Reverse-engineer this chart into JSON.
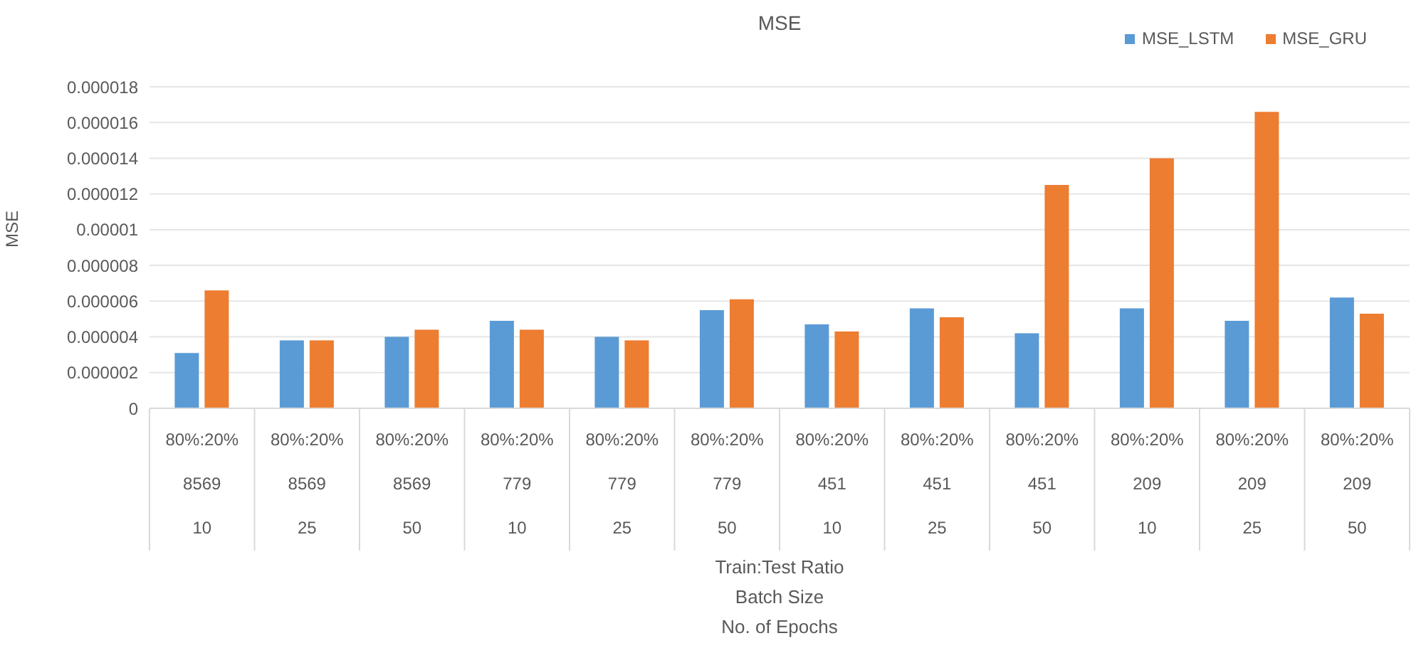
{
  "chart_data": {
    "type": "bar",
    "title": "MSE",
    "ylabel": "MSE",
    "annotations": [
      "Train:Test Ratio",
      "Batch Size",
      "No. of Epochs"
    ],
    "categories": [
      "80%:20%\n8569\n10",
      "80%:20%\n8569\n25",
      "80%:20%\n8569\n50",
      "80%:20%\n779\n10",
      "80%:20%\n779\n25",
      "80%:20%\n779\n50",
      "80%:20%\n451\n10",
      "80%:20%\n451\n25",
      "80%:20%\n451\n50",
      "80%:20%\n209\n10",
      "80%:20%\n209\n25",
      "80%:20%\n209\n50"
    ],
    "series": [
      {
        "name": "MSE_LSTM",
        "color": "#5b9bd5",
        "values": [
          3.1e-06,
          3.8e-06,
          4e-06,
          4.9e-06,
          4e-06,
          5.5e-06,
          4.7e-06,
          5.6e-06,
          4.2e-06,
          5.6e-06,
          4.9e-06,
          6.2e-06
        ]
      },
      {
        "name": "MSE_GRU",
        "color": "#ed7d31",
        "values": [
          6.6e-06,
          3.8e-06,
          4.4e-06,
          4.4e-06,
          3.8e-06,
          6.1e-06,
          4.3e-06,
          5.1e-06,
          1.25e-05,
          1.4e-05,
          1.66e-05,
          5.3e-06
        ]
      }
    ],
    "ylim": [
      0,
      1.8e-05
    ],
    "yticks": [
      0,
      {
        "value": 2e-06,
        "label": "0.000002"
      },
      {
        "value": 4e-06,
        "label": "0.000004"
      },
      {
        "value": 6e-06,
        "label": "0.000006"
      },
      {
        "value": 8e-06,
        "label": "0.000008"
      },
      {
        "value": 1e-05,
        "label": "0.00001"
      },
      {
        "value": 1.2e-05,
        "label": "0.000012"
      },
      {
        "value": 1.4e-05,
        "label": "0.000014"
      },
      {
        "value": 1.6e-05,
        "label": "0.000016"
      },
      {
        "value": 1.8e-05,
        "label": "0.000018"
      }
    ],
    "grid": "y",
    "legend": "top right"
  }
}
